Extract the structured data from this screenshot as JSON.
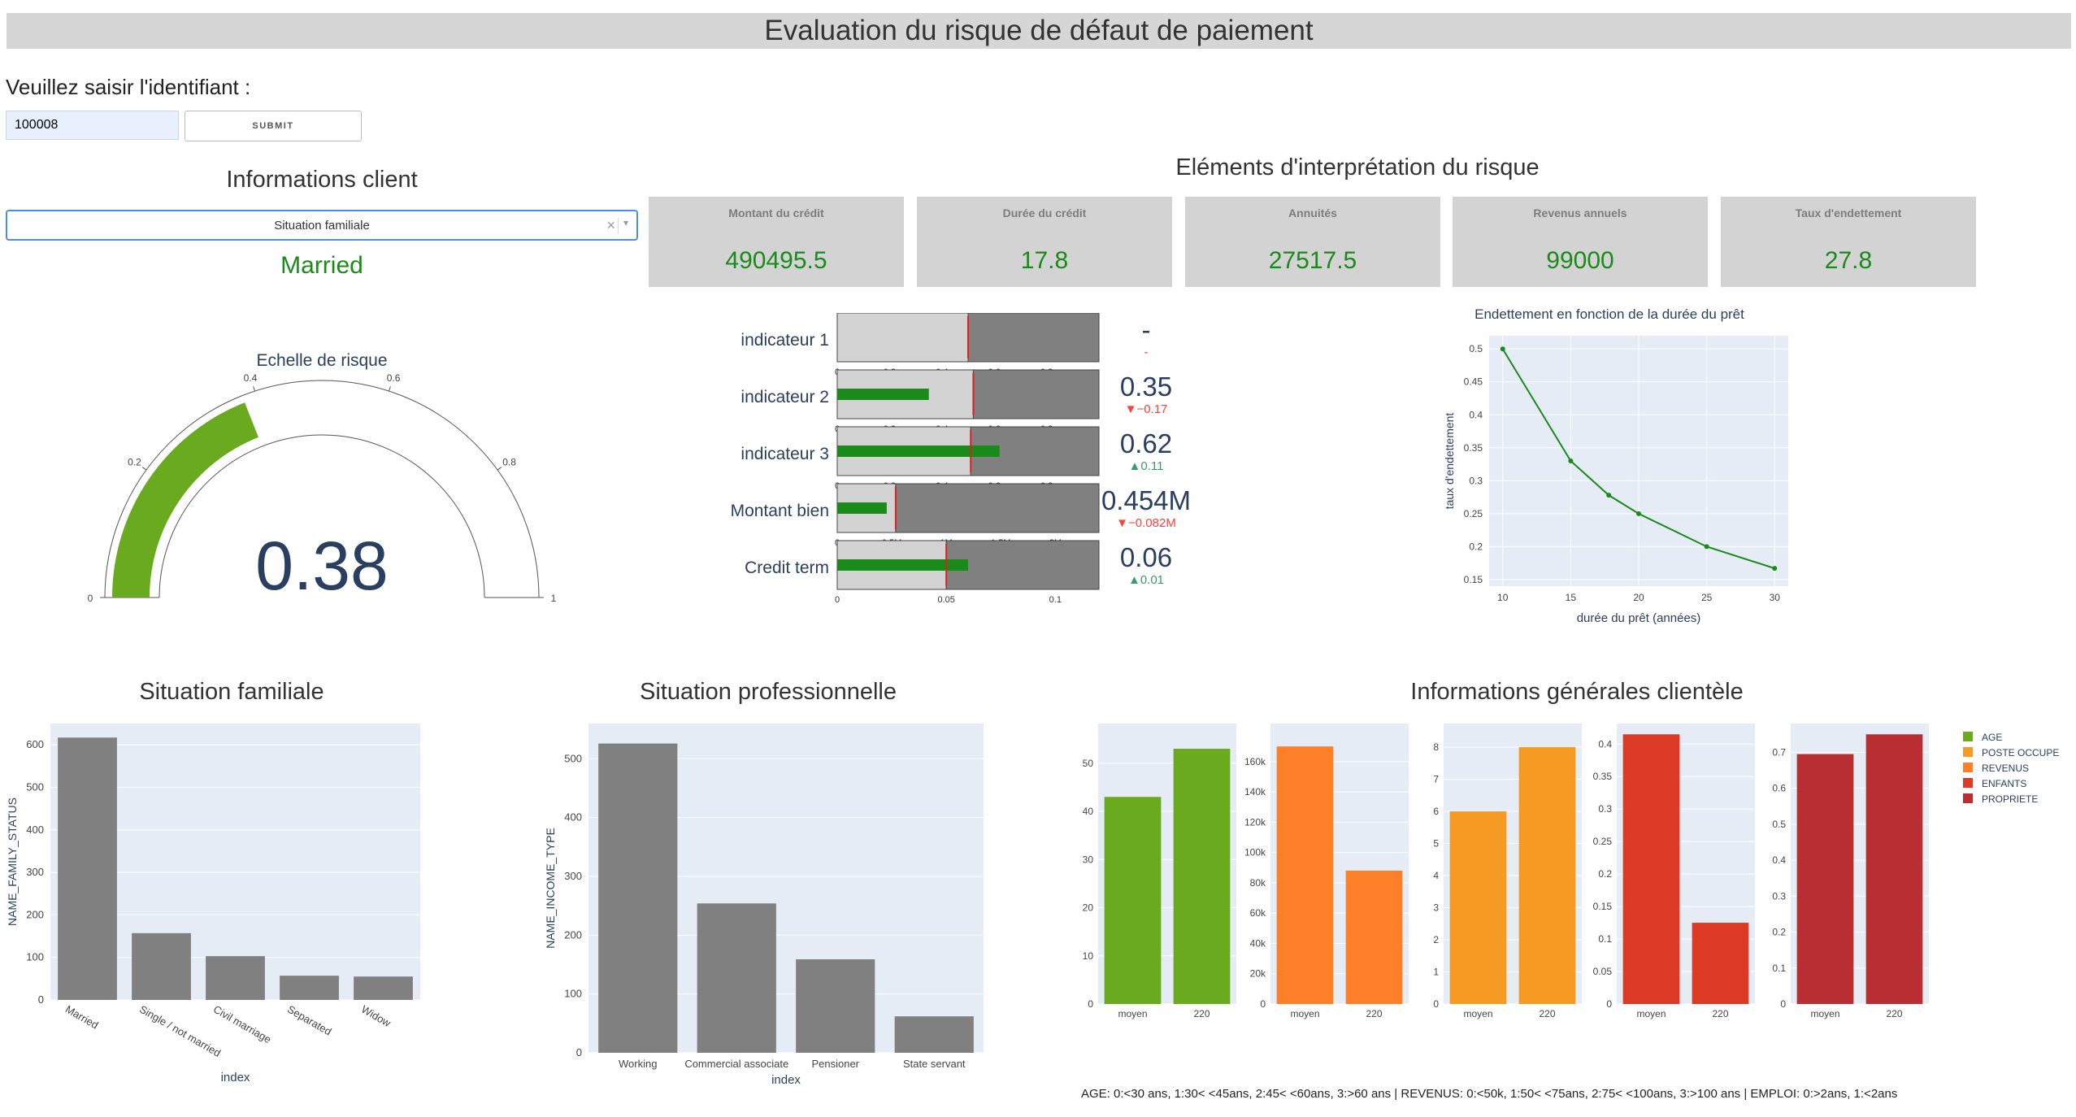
{
  "header": {
    "title": "Evaluation du risque de défaut de paiement"
  },
  "form": {
    "prompt": "Veuillez saisir l'identifiant :",
    "id_value": "100008",
    "submit_label": "SUBMIT"
  },
  "client": {
    "title": "Informations client",
    "select_value": "Situation familiale",
    "clear_glyph": "×",
    "caret_glyph": "▾",
    "selected_display": "Married"
  },
  "gauge": {
    "title": "Echelle de risque",
    "value": 0.38,
    "value_text": "0.38",
    "min": 0,
    "max": 1,
    "ticks": [
      "0",
      "0.2",
      "0.4",
      "0.6",
      "0.8",
      "1"
    ],
    "bar_color": "#6aaa1e"
  },
  "interpretation": {
    "title": "Eléments d'interprétation du risque",
    "kpis": [
      {
        "label": "Montant du crédit",
        "value": "490495.5"
      },
      {
        "label": "Durée du crédit",
        "value": "17.8"
      },
      {
        "label": "Annuités",
        "value": "27517.5"
      },
      {
        "label": "Revenus annuels",
        "value": "99000"
      },
      {
        "label": "Taux d'endettement",
        "value": "27.8"
      }
    ],
    "bullets": [
      {
        "label": "indicateur 1",
        "ticks": [
          "0",
          "0.2",
          "0.4",
          "0.6",
          "0.8"
        ],
        "max": 1,
        "bar": null,
        "threshold": 0.5,
        "value_text": "-",
        "delta_text": "-",
        "delta_dir": "down"
      },
      {
        "label": "indicateur 2",
        "ticks": [
          "0",
          "0.2",
          "0.4",
          "0.6",
          "0.8"
        ],
        "max": 1,
        "bar": 0.35,
        "threshold": 0.52,
        "value_text": "0.35",
        "delta_text": "▼−0.17",
        "delta_dir": "down"
      },
      {
        "label": "indicateur 3",
        "ticks": [
          "0",
          "0.2",
          "0.4",
          "0.6",
          "0.8"
        ],
        "max": 1,
        "bar": 0.62,
        "threshold": 0.51,
        "value_text": "0.62",
        "delta_text": "▲0.11",
        "delta_dir": "up"
      },
      {
        "label": "Montant bien",
        "ticks": [
          "0",
          "0.5M",
          "1M",
          "1.5M",
          "2M"
        ],
        "max": 2400000,
        "bar": 454000,
        "threshold": 536000,
        "value_text": "0.454M",
        "delta_text": "▼−0.082M",
        "delta_dir": "down"
      },
      {
        "label": "Credit term",
        "ticks": [
          "0",
          "0.05",
          "0.1"
        ],
        "max": 0.12,
        "bar": 0.06,
        "threshold": 0.05,
        "value_text": "0.06",
        "delta_text": "▲0.01",
        "delta_dir": "up"
      }
    ]
  },
  "line_chart": {
    "title": "Endettement en fonction de la durée du prêt",
    "xlabel": "durée du prêt (années)",
    "ylabel": "taux d'endettement",
    "x": [
      10,
      15,
      17.8,
      20,
      25,
      30
    ],
    "y": [
      0.5,
      0.33,
      0.278,
      0.25,
      0.2,
      0.167
    ],
    "xticks": [
      "10",
      "15",
      "20",
      "25",
      "30"
    ],
    "yticks": [
      "0.15",
      "0.2",
      "0.25",
      "0.3",
      "0.35",
      "0.4",
      "0.45",
      "0.5"
    ],
    "color": "#1a8a1a"
  },
  "family_chart": {
    "title": "Situation familiale",
    "xlabel": "index",
    "ylabel": "NAME_FAMILY_STATUS",
    "categories": [
      "Married",
      "Single / not married",
      "Civil marriage",
      "Separated",
      "Widow"
    ],
    "values": [
      617,
      157,
      103,
      57,
      55
    ],
    "yticks": [
      "0",
      "100",
      "200",
      "300",
      "400",
      "500",
      "600"
    ],
    "color": "#808080"
  },
  "income_chart": {
    "title": "Situation professionnelle",
    "xlabel": "index",
    "ylabel": "NAME_INCOME_TYPE",
    "categories": [
      "Working",
      "Commercial associate",
      "Pensioner",
      "State servant"
    ],
    "values": [
      526,
      254,
      159,
      62
    ],
    "yticks": [
      "0",
      "100",
      "200",
      "300",
      "400",
      "500"
    ],
    "color": "#808080"
  },
  "general": {
    "title": "Informations générales clientèle",
    "legend_note": "AGE: 0:<30 ans, 1:30< <45ans, 2:45< <60ans, 3:>60 ans | REVENUS: 0:<50k, 1:50< <75ans, 2:75< <100ans, 3:>100 ans | EMPLOI: 0:>2ans, 1:<2ans",
    "legend": [
      {
        "name": "AGE",
        "color": "#6aaa1e"
      },
      {
        "name": "POSTE OCCUPE",
        "color": "#f59a23"
      },
      {
        "name": "REVENUS",
        "color": "#fd7f28"
      },
      {
        "name": "ENFANTS",
        "color": "#dd3a25"
      },
      {
        "name": "PROPRIETE",
        "color": "#b82e33"
      }
    ],
    "panels": [
      {
        "series": "AGE",
        "categories": [
          "moyen",
          "220"
        ],
        "values": [
          43,
          53
        ],
        "yticks": [
          "0",
          "10",
          "20",
          "30",
          "40",
          "50"
        ],
        "ymax": 56,
        "color": "#6aaa1e"
      },
      {
        "series": "REVENUS",
        "categories": [
          "moyen",
          "220"
        ],
        "values": [
          170000,
          88000
        ],
        "yticks": [
          "0",
          "20k",
          "40k",
          "60k",
          "80k",
          "100k",
          "120k",
          "140k",
          "160k"
        ],
        "ymax": 178000,
        "color": "#fd7f28"
      },
      {
        "series": "POSTE OCCUPE",
        "categories": [
          "moyen",
          "220"
        ],
        "values": [
          6,
          8
        ],
        "yticks": [
          "0",
          "1",
          "2",
          "3",
          "4",
          "5",
          "6",
          "7",
          "8"
        ],
        "ymax": 8.4,
        "color": "#f59a23"
      },
      {
        "series": "ENFANTS",
        "categories": [
          "moyen",
          "220"
        ],
        "values": [
          0.415,
          0.125
        ],
        "yticks": [
          "0",
          "0.05",
          "0.1",
          "0.15",
          "0.2",
          "0.25",
          "0.3",
          "0.35",
          "0.4"
        ],
        "ymax": 0.415,
        "color": "#dd3a25"
      },
      {
        "series": "PROPRIETE",
        "categories": [
          "moyen",
          "220"
        ],
        "values": [
          0.695,
          0.75
        ],
        "yticks": [
          "0",
          "0.1",
          "0.2",
          "0.3",
          "0.4",
          "0.5",
          "0.6",
          "0.7"
        ],
        "ymax": 0.75,
        "color": "#b82e33"
      }
    ]
  }
}
